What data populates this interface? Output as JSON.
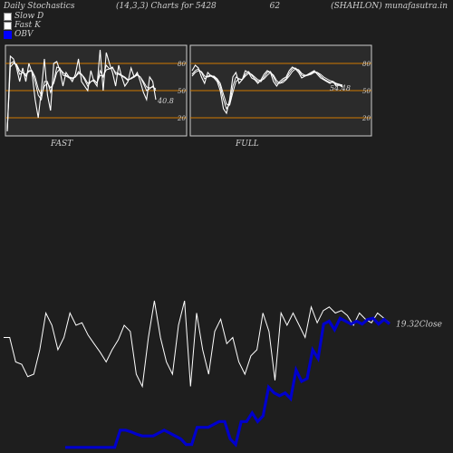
{
  "header": {
    "left": "Daily Stochastics",
    "middle": "(14,3,3) Charts for 5428",
    "code": "62",
    "right": "(SHAHLON) munafasutra.in"
  },
  "legend": [
    {
      "label": "Slow  D",
      "color": "#ffffff"
    },
    {
      "label": "Fast K",
      "color": "#ffffff"
    },
    {
      "label": "OBV",
      "color": "#0000ff"
    }
  ],
  "chart_data": [
    {
      "type": "line",
      "title": "FAST",
      "ylim": [
        0,
        100
      ],
      "yticks": [
        "80",
        "50",
        "20"
      ],
      "reference_lines": [
        80,
        50,
        20
      ],
      "last_value_label": "40.8",
      "series": [
        {
          "role": "fast-k",
          "values": [
            5,
            88,
            85,
            75,
            60,
            75,
            60,
            80,
            70,
            40,
            20,
            50,
            85,
            45,
            28,
            80,
            82,
            72,
            55,
            70,
            65,
            60,
            68,
            85,
            60,
            55,
            50,
            72,
            60,
            55,
            95,
            50,
            92,
            80,
            70,
            55,
            78,
            65,
            55,
            60,
            75,
            65,
            70,
            60,
            48,
            40,
            65,
            60,
            40
          ]
        },
        {
          "role": "slow-d",
          "values": [
            5,
            80,
            82,
            78,
            68,
            70,
            66,
            72,
            72,
            60,
            45,
            40,
            60,
            60,
            48,
            60,
            76,
            75,
            67,
            66,
            64,
            63,
            65,
            71,
            68,
            62,
            55,
            60,
            62,
            58,
            72,
            65,
            78,
            74,
            76,
            68,
            68,
            66,
            64,
            61,
            64,
            66,
            68,
            65,
            58,
            50,
            52,
            55,
            50
          ]
        },
        {
          "role": "signal",
          "values": [
            5,
            76,
            80,
            79,
            72,
            70,
            68,
            71,
            72,
            65,
            52,
            45,
            55,
            58,
            53,
            58,
            70,
            74,
            70,
            67,
            65,
            64,
            65,
            69,
            68,
            64,
            58,
            60,
            61,
            59,
            67,
            66,
            73,
            74,
            75,
            70,
            69,
            67,
            65,
            62,
            63,
            65,
            67,
            65,
            60,
            54,
            53,
            54,
            52
          ]
        }
      ]
    },
    {
      "type": "line",
      "title": "FULL",
      "ylim": [
        0,
        100
      ],
      "yticks": [
        "80",
        "50",
        "20"
      ],
      "reference_lines": [
        80,
        50,
        20
      ],
      "last_value_label": "54.48",
      "series": [
        {
          "role": "full-k",
          "values": [
            72,
            78,
            75,
            65,
            58,
            70,
            66,
            64,
            60,
            50,
            30,
            25,
            40,
            65,
            70,
            58,
            62,
            72,
            70,
            64,
            62,
            58,
            62,
            68,
            72,
            70,
            60,
            55,
            60,
            63,
            65,
            72,
            76,
            74,
            70,
            64,
            66,
            68,
            70,
            72,
            68,
            64,
            62,
            60,
            58,
            60,
            55,
            56,
            54
          ]
        },
        {
          "role": "full-d",
          "values": [
            68,
            72,
            74,
            70,
            63,
            66,
            67,
            65,
            62,
            55,
            40,
            30,
            35,
            55,
            65,
            63,
            62,
            68,
            71,
            67,
            63,
            60,
            60,
            65,
            70,
            71,
            65,
            58,
            58,
            61,
            63,
            69,
            74,
            75,
            72,
            67,
            66,
            67,
            69,
            71,
            70,
            66,
            63,
            61,
            59,
            59,
            57,
            56,
            55
          ]
        },
        {
          "role": "signal",
          "values": [
            66,
            70,
            72,
            71,
            66,
            65,
            66,
            66,
            63,
            58,
            46,
            35,
            34,
            48,
            60,
            63,
            62,
            66,
            69,
            68,
            65,
            62,
            61,
            63,
            67,
            70,
            67,
            61,
            58,
            59,
            62,
            66,
            71,
            74,
            73,
            69,
            67,
            67,
            68,
            70,
            70,
            68,
            65,
            63,
            61,
            60,
            58,
            57,
            56
          ]
        }
      ]
    },
    {
      "type": "line",
      "title": "",
      "last_value_label": "19.32",
      "last_value_suffix": "Close",
      "series": [
        {
          "role": "price",
          "values": [
            50,
            50,
            30,
            28,
            18,
            20,
            40,
            70,
            60,
            40,
            50,
            70,
            60,
            62,
            52,
            45,
            38,
            30,
            40,
            48,
            60,
            55,
            20,
            10,
            50,
            80,
            50,
            30,
            20,
            60,
            80,
            10,
            70,
            40,
            20,
            55,
            65,
            45,
            50,
            30,
            20,
            35,
            40,
            70,
            55,
            15,
            70,
            60,
            70,
            60,
            50,
            75,
            62,
            72,
            75,
            70,
            72,
            68,
            60,
            70,
            65,
            62,
            70,
            66,
            62
          ]
        },
        {
          "role": "obv",
          "values": [
            5,
            5,
            5,
            5,
            5,
            5,
            5,
            5,
            5,
            5,
            35,
            35,
            32,
            28,
            25,
            25,
            25,
            30,
            35,
            30,
            25,
            20,
            10,
            10,
            40,
            40,
            40,
            45,
            50,
            50,
            20,
            10,
            50,
            50,
            65,
            50,
            60,
            110,
            100,
            95,
            100,
            90,
            140,
            120,
            125,
            175,
            160,
            220,
            225,
            210,
            230,
            225,
            220,
            225,
            220,
            228,
            230,
            220,
            228,
            220
          ]
        }
      ]
    }
  ],
  "colors": {
    "background": "#1e1e1e",
    "panel": "#2b2b2b",
    "panel_border": "#cccccc",
    "grid": "#d07a00",
    "line": "#ffffff",
    "obv": "#0000cc",
    "text": "#d0d0d0"
  }
}
